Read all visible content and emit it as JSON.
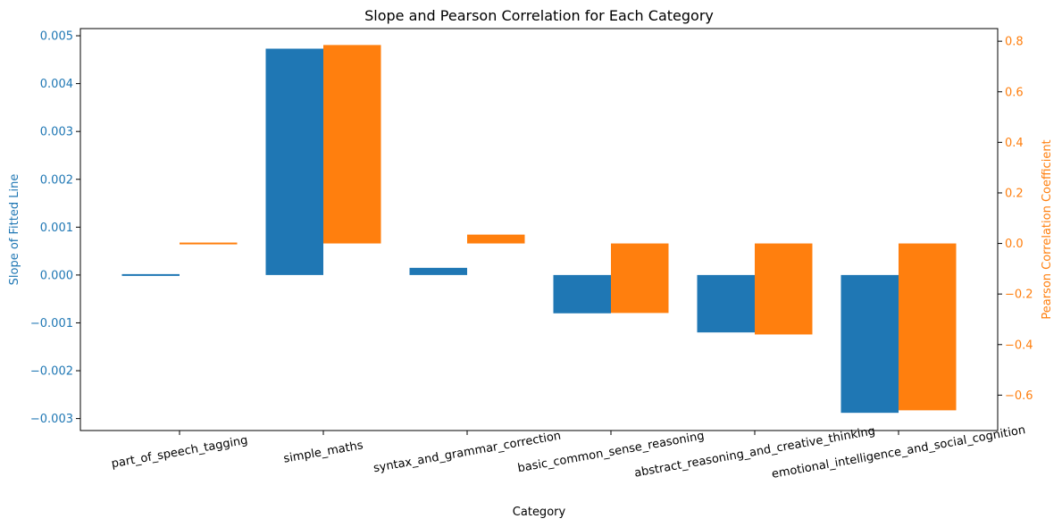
{
  "chart_data": {
    "type": "bar",
    "title": "Slope and Pearson Correlation for Each Category",
    "xlabel": "Category",
    "categories": [
      "part_of_speech_tagging",
      "simple_maths",
      "syntax_and_grammar_correction",
      "basic_common_sense_reasoning",
      "abstract_reasoning_and_creative_thinking",
      "emotional_intelligence_and_social_cognition"
    ],
    "left_axis": {
      "label": "Slope of Fitted Line",
      "color": "#1f77b4",
      "ylim": [
        -0.00325,
        0.00515
      ],
      "ticks": [
        -0.003,
        -0.002,
        -0.001,
        0.0,
        0.001,
        0.002,
        0.003,
        0.004,
        0.005
      ],
      "tick_labels": [
        "−0.003",
        "−0.002",
        "−0.001",
        "0.000",
        "0.001",
        "0.002",
        "0.003",
        "0.004",
        "0.005"
      ]
    },
    "right_axis": {
      "label": "Pearson Correlation Coefficient",
      "color": "#ff7f0e",
      "ylim": [
        -0.74,
        0.85
      ],
      "ticks": [
        -0.6,
        -0.4,
        -0.2,
        0.0,
        0.2,
        0.4,
        0.6,
        0.8
      ],
      "tick_labels": [
        "−0.6",
        "−0.4",
        "−0.2",
        "0.0",
        "0.2",
        "0.4",
        "0.6",
        "0.8"
      ]
    },
    "series": [
      {
        "axis": "left",
        "color": "#1f77b4",
        "values": [
          2e-05,
          0.00473,
          0.00015,
          -0.0008,
          -0.0012,
          -0.00288
        ]
      },
      {
        "axis": "right",
        "color": "#ff7f0e",
        "values": [
          0.005,
          0.785,
          0.035,
          -0.275,
          -0.36,
          -0.66
        ]
      }
    ],
    "grid": false,
    "legend": "none"
  }
}
